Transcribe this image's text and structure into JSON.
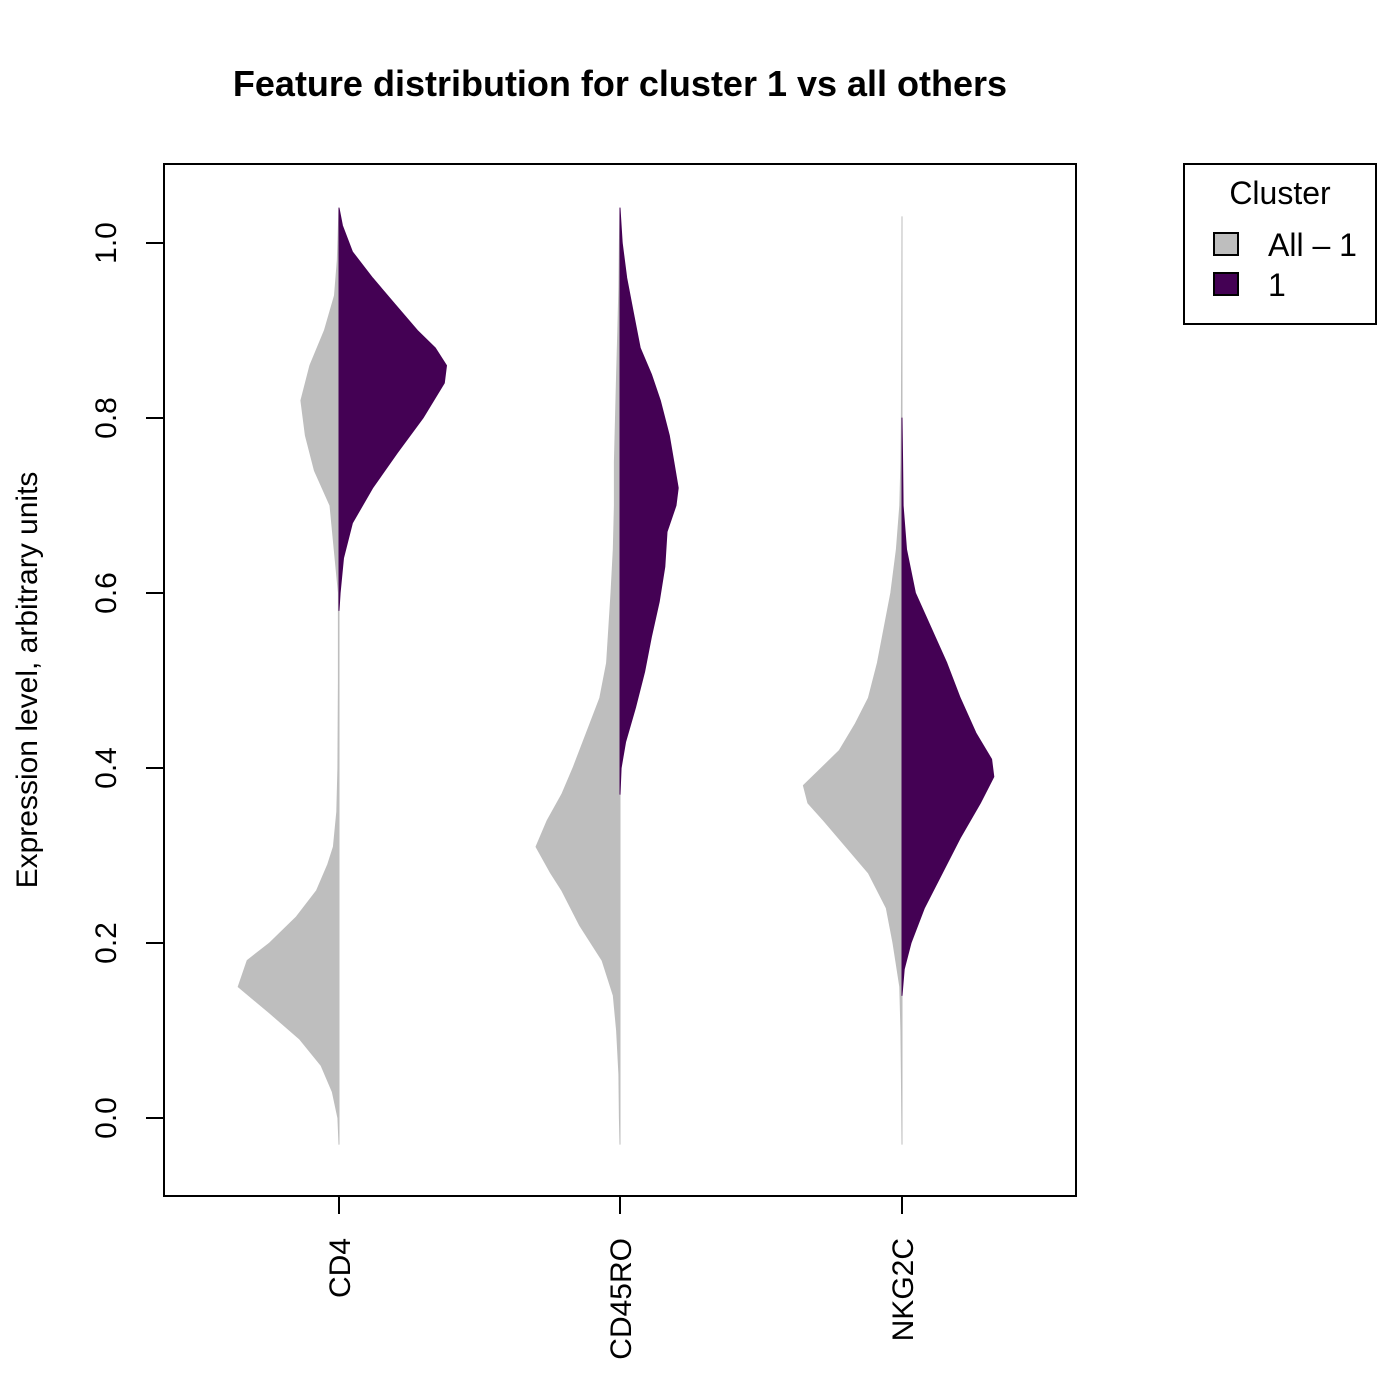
{
  "chart_data": {
    "type": "violin",
    "title": "Feature distribution for cluster 1 vs all others",
    "ylabel": "Expression level, arbitrary units",
    "xlabel": "",
    "ylim": [
      -0.09,
      1.09
    ],
    "yticks": [
      "0.0",
      "0.2",
      "0.4",
      "0.6",
      "0.8",
      "1.0"
    ],
    "categories": [
      "CD4",
      "CD45RO",
      "NKG2C"
    ],
    "legend": {
      "title": "Cluster",
      "position": "top-right outside plot",
      "entries": [
        {
          "label": "All – 1",
          "color": "#bebebe"
        },
        {
          "label": "1",
          "color": "#440154"
        }
      ]
    },
    "series": [
      {
        "name": "All – 1",
        "side": "left",
        "color": "#bebebe",
        "profiles": [
          [
            [
              -0.03,
              0
            ],
            [
              0.0,
              0.01
            ],
            [
              0.03,
              0.06
            ],
            [
              0.06,
              0.16
            ],
            [
              0.09,
              0.35
            ],
            [
              0.12,
              0.62
            ],
            [
              0.15,
              0.9
            ],
            [
              0.18,
              0.82
            ],
            [
              0.2,
              0.62
            ],
            [
              0.23,
              0.38
            ],
            [
              0.26,
              0.2
            ],
            [
              0.29,
              0.1
            ],
            [
              0.31,
              0.05
            ],
            [
              0.35,
              0.02
            ],
            [
              0.4,
              0.01
            ],
            [
              0.5,
              0.005
            ],
            [
              0.6,
              0.005
            ],
            [
              0.7,
              0.08
            ],
            [
              0.74,
              0.22
            ],
            [
              0.78,
              0.3
            ],
            [
              0.82,
              0.34
            ],
            [
              0.86,
              0.26
            ],
            [
              0.9,
              0.13
            ],
            [
              0.94,
              0.04
            ],
            [
              0.98,
              0.015
            ],
            [
              1.04,
              0
            ]
          ],
          [
            [
              -0.03,
              0
            ],
            [
              0.0,
              0.005
            ],
            [
              0.05,
              0.01
            ],
            [
              0.1,
              0.03
            ],
            [
              0.14,
              0.06
            ],
            [
              0.18,
              0.16
            ],
            [
              0.22,
              0.36
            ],
            [
              0.26,
              0.52
            ],
            [
              0.28,
              0.62
            ],
            [
              0.31,
              0.75
            ],
            [
              0.34,
              0.65
            ],
            [
              0.37,
              0.52
            ],
            [
              0.4,
              0.42
            ],
            [
              0.44,
              0.3
            ],
            [
              0.48,
              0.18
            ],
            [
              0.52,
              0.12
            ],
            [
              0.56,
              0.1
            ],
            [
              0.6,
              0.08
            ],
            [
              0.65,
              0.06
            ],
            [
              0.7,
              0.05
            ],
            [
              0.75,
              0.05
            ],
            [
              0.8,
              0.04
            ],
            [
              0.85,
              0.03
            ],
            [
              0.9,
              0.02
            ],
            [
              0.95,
              0.01
            ],
            [
              1.0,
              0.005
            ],
            [
              1.04,
              0
            ]
          ],
          [
            [
              -0.03,
              0
            ],
            [
              0.05,
              0.005
            ],
            [
              0.1,
              0.01
            ],
            [
              0.15,
              0.02
            ],
            [
              0.2,
              0.08
            ],
            [
              0.24,
              0.14
            ],
            [
              0.28,
              0.3
            ],
            [
              0.31,
              0.5
            ],
            [
              0.34,
              0.7
            ],
            [
              0.36,
              0.84
            ],
            [
              0.38,
              0.88
            ],
            [
              0.4,
              0.72
            ],
            [
              0.42,
              0.56
            ],
            [
              0.45,
              0.42
            ],
            [
              0.48,
              0.3
            ],
            [
              0.52,
              0.22
            ],
            [
              0.56,
              0.16
            ],
            [
              0.6,
              0.1
            ],
            [
              0.65,
              0.05
            ],
            [
              0.7,
              0.02
            ],
            [
              0.75,
              0.01
            ],
            [
              0.8,
              0.005
            ],
            [
              0.9,
              0.003
            ],
            [
              1.03,
              0
            ]
          ]
        ]
      },
      {
        "name": "1",
        "side": "right",
        "color": "#440154",
        "profiles": [
          [
            [
              0.58,
              0
            ],
            [
              0.6,
              0.01
            ],
            [
              0.64,
              0.04
            ],
            [
              0.68,
              0.12
            ],
            [
              0.72,
              0.3
            ],
            [
              0.76,
              0.52
            ],
            [
              0.8,
              0.75
            ],
            [
              0.84,
              0.94
            ],
            [
              0.86,
              0.96
            ],
            [
              0.88,
              0.86
            ],
            [
              0.9,
              0.7
            ],
            [
              0.93,
              0.5
            ],
            [
              0.96,
              0.3
            ],
            [
              0.99,
              0.12
            ],
            [
              1.02,
              0.03
            ],
            [
              1.04,
              0
            ]
          ],
          [
            [
              0.37,
              0
            ],
            [
              0.4,
              0.01
            ],
            [
              0.43,
              0.05
            ],
            [
              0.47,
              0.14
            ],
            [
              0.51,
              0.22
            ],
            [
              0.55,
              0.28
            ],
            [
              0.59,
              0.35
            ],
            [
              0.63,
              0.4
            ],
            [
              0.67,
              0.42
            ],
            [
              0.7,
              0.5
            ],
            [
              0.72,
              0.52
            ],
            [
              0.75,
              0.48
            ],
            [
              0.78,
              0.44
            ],
            [
              0.82,
              0.36
            ],
            [
              0.85,
              0.28
            ],
            [
              0.88,
              0.18
            ],
            [
              0.92,
              0.12
            ],
            [
              0.96,
              0.06
            ],
            [
              1.0,
              0.02
            ],
            [
              1.04,
              0
            ]
          ],
          [
            [
              0.14,
              0
            ],
            [
              0.17,
              0.02
            ],
            [
              0.2,
              0.08
            ],
            [
              0.24,
              0.2
            ],
            [
              0.28,
              0.36
            ],
            [
              0.32,
              0.52
            ],
            [
              0.36,
              0.7
            ],
            [
              0.39,
              0.82
            ],
            [
              0.41,
              0.8
            ],
            [
              0.44,
              0.66
            ],
            [
              0.48,
              0.52
            ],
            [
              0.52,
              0.4
            ],
            [
              0.56,
              0.26
            ],
            [
              0.6,
              0.12
            ],
            [
              0.65,
              0.04
            ],
            [
              0.7,
              0.01
            ],
            [
              0.75,
              0.005
            ],
            [
              0.8,
              0
            ]
          ]
        ]
      }
    ]
  }
}
